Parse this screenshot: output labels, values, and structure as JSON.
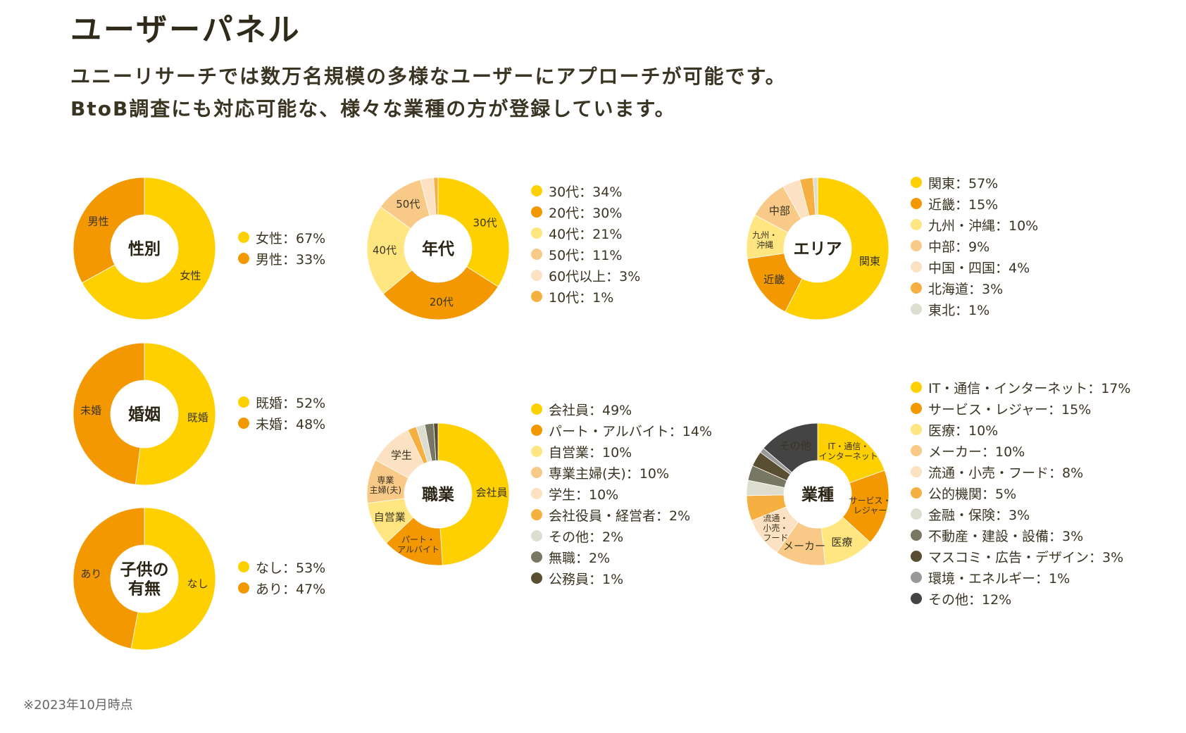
{
  "header": {
    "title": "ユーザーパネル",
    "lead_line1": "ユニーリサーチでは数万名規模の多様なユーザーにアプローチが可能です。",
    "lead_line2": "BtoB調査にも対応可能な、様々な業種の方が登録しています。"
  },
  "footnote": "※2023年10月時点",
  "chart_data": [
    {
      "id": "gender",
      "type": "pie",
      "title": "性別",
      "slices": [
        {
          "name": "女性",
          "label": "女性",
          "value": 67,
          "legend": "女性：67%",
          "color": "#FFD000"
        },
        {
          "name": "男性",
          "label": "男性",
          "value": 33,
          "legend": "男性：33%",
          "color": "#F39800"
        }
      ]
    },
    {
      "id": "age",
      "type": "pie",
      "title": "年代",
      "slices": [
        {
          "name": "30代",
          "label": "30代",
          "value": 34,
          "legend": "30代：34%",
          "color": "#FFD000"
        },
        {
          "name": "20代",
          "label": "20代",
          "value": 30,
          "legend": "20代：30%",
          "color": "#F39800"
        },
        {
          "name": "40代",
          "label": "40代",
          "value": 21,
          "legend": "40代：21%",
          "color": "#FFE680"
        },
        {
          "name": "50代",
          "label": "50代",
          "value": 11,
          "legend": "50代：11%",
          "color": "#F8C987"
        },
        {
          "name": "60代以上",
          "label": "",
          "value": 3,
          "legend": "60代以上：3%",
          "color": "#FCE2C2"
        },
        {
          "name": "10代",
          "label": "",
          "value": 1,
          "legend": "10代：1%",
          "color": "#F5B041"
        }
      ]
    },
    {
      "id": "area",
      "type": "pie",
      "title": "エリア",
      "slices": [
        {
          "name": "関東",
          "label": "関東",
          "value": 57,
          "legend": "関東：57%",
          "color": "#FFD000"
        },
        {
          "name": "近畿",
          "label": "近畿",
          "value": 15,
          "legend": "近畿：15%",
          "color": "#F39800"
        },
        {
          "name": "九州・沖縄",
          "label": "九州・|沖縄",
          "value": 10,
          "legend": "九州・沖縄：10%",
          "color": "#FFE680"
        },
        {
          "name": "中部",
          "label": "中部",
          "value": 9,
          "legend": "中部：9%",
          "color": "#F8C987"
        },
        {
          "name": "中国・四国",
          "label": "",
          "value": 4,
          "legend": "中国・四国：4%",
          "color": "#FCE2C2"
        },
        {
          "name": "北海道",
          "label": "",
          "value": 3,
          "legend": "北海道：3%",
          "color": "#F5B041"
        },
        {
          "name": "東北",
          "label": "",
          "value": 1,
          "legend": "東北：1%",
          "color": "#DDDDD0"
        }
      ]
    },
    {
      "id": "marriage",
      "type": "pie",
      "title": "婚姻",
      "slices": [
        {
          "name": "既婚",
          "label": "既婚",
          "value": 52,
          "legend": "既婚：52%",
          "color": "#FFD000"
        },
        {
          "name": "未婚",
          "label": "未婚",
          "value": 48,
          "legend": "未婚：48%",
          "color": "#F39800"
        }
      ]
    },
    {
      "id": "job",
      "type": "pie",
      "title": "職業",
      "slices": [
        {
          "name": "会社員",
          "label": "会社員",
          "value": 49,
          "legend": "会社員：49%",
          "color": "#FFD000"
        },
        {
          "name": "パート・アルバイト",
          "label": "パート・|アルバイト",
          "value": 14,
          "legend": "パート・アルバイト：14%",
          "color": "#F39800"
        },
        {
          "name": "自営業",
          "label": "自営業",
          "value": 10,
          "legend": "自営業：10%",
          "color": "#FFE680"
        },
        {
          "name": "専業主婦(夫)",
          "label": "専業|主婦(夫)",
          "value": 10,
          "legend": "専業主婦(夫)：10%",
          "color": "#F8C987"
        },
        {
          "name": "学生",
          "label": "学生",
          "value": 10,
          "legend": "学生：10%",
          "color": "#FCE2C2"
        },
        {
          "name": "会社役員・経営者",
          "label": "",
          "value": 2,
          "legend": "会社役員・経営者：2%",
          "color": "#F5B041"
        },
        {
          "name": "その他",
          "label": "",
          "value": 2,
          "legend": "その他：2%",
          "color": "#DDDDD0"
        },
        {
          "name": "無職",
          "label": "",
          "value": 2,
          "legend": "無職：2%",
          "color": "#777764"
        },
        {
          "name": "公務員",
          "label": "",
          "value": 1,
          "legend": "公務員：1%",
          "color": "#5A4E32"
        }
      ]
    },
    {
      "id": "industry",
      "type": "pie",
      "title": "業種",
      "slices": [
        {
          "name": "IT・通信・インターネット",
          "label": "IT・通信・|インターネット",
          "value": 17,
          "legend": "IT・通信・インターネット：17%",
          "color": "#FFD000"
        },
        {
          "name": "サービス・レジャー",
          "label": "サービス・|レジャー",
          "value": 15,
          "legend": "サービス・レジャー：15%",
          "color": "#F39800"
        },
        {
          "name": "医療",
          "label": "医療",
          "value": 10,
          "legend": "医療：10%",
          "color": "#FFE680"
        },
        {
          "name": "メーカー",
          "label": "メーカー",
          "value": 10,
          "legend": "メーカー：10%",
          "color": "#F8C987"
        },
        {
          "name": "流通・小売・フード",
          "label": "流通・|小売・|フード",
          "value": 8,
          "legend": "流通・小売・フード：8%",
          "color": "#FCE2C2"
        },
        {
          "name": "公的機関",
          "label": "",
          "value": 5,
          "legend": "公的機関：5%",
          "color": "#F5B041"
        },
        {
          "name": "金融・保険",
          "label": "",
          "value": 3,
          "legend": "金融・保険：3%",
          "color": "#DDDDD0"
        },
        {
          "name": "不動産・建設・設備",
          "label": "",
          "value": 3,
          "legend": "不動産・建設・設備：3%",
          "color": "#777764"
        },
        {
          "name": "マスコミ・広告・デザイン",
          "label": "",
          "value": 3,
          "legend": "マスコミ・広告・デザイン：3%",
          "color": "#5A4E32"
        },
        {
          "name": "環境・エネルギー",
          "label": "",
          "value": 1,
          "legend": "環境・エネルギー：1%",
          "color": "#999999"
        },
        {
          "name": "その他",
          "label": "その他",
          "value": 12,
          "legend": "その他：12%",
          "color": "#444444"
        }
      ]
    },
    {
      "id": "children",
      "type": "pie",
      "title": "子供の|有無",
      "slices": [
        {
          "name": "なし",
          "label": "なし",
          "value": 53,
          "legend": "なし：53%",
          "color": "#FFD000"
        },
        {
          "name": "あり",
          "label": "あり",
          "value": 47,
          "legend": "あり：47%",
          "color": "#F39800"
        }
      ]
    }
  ]
}
